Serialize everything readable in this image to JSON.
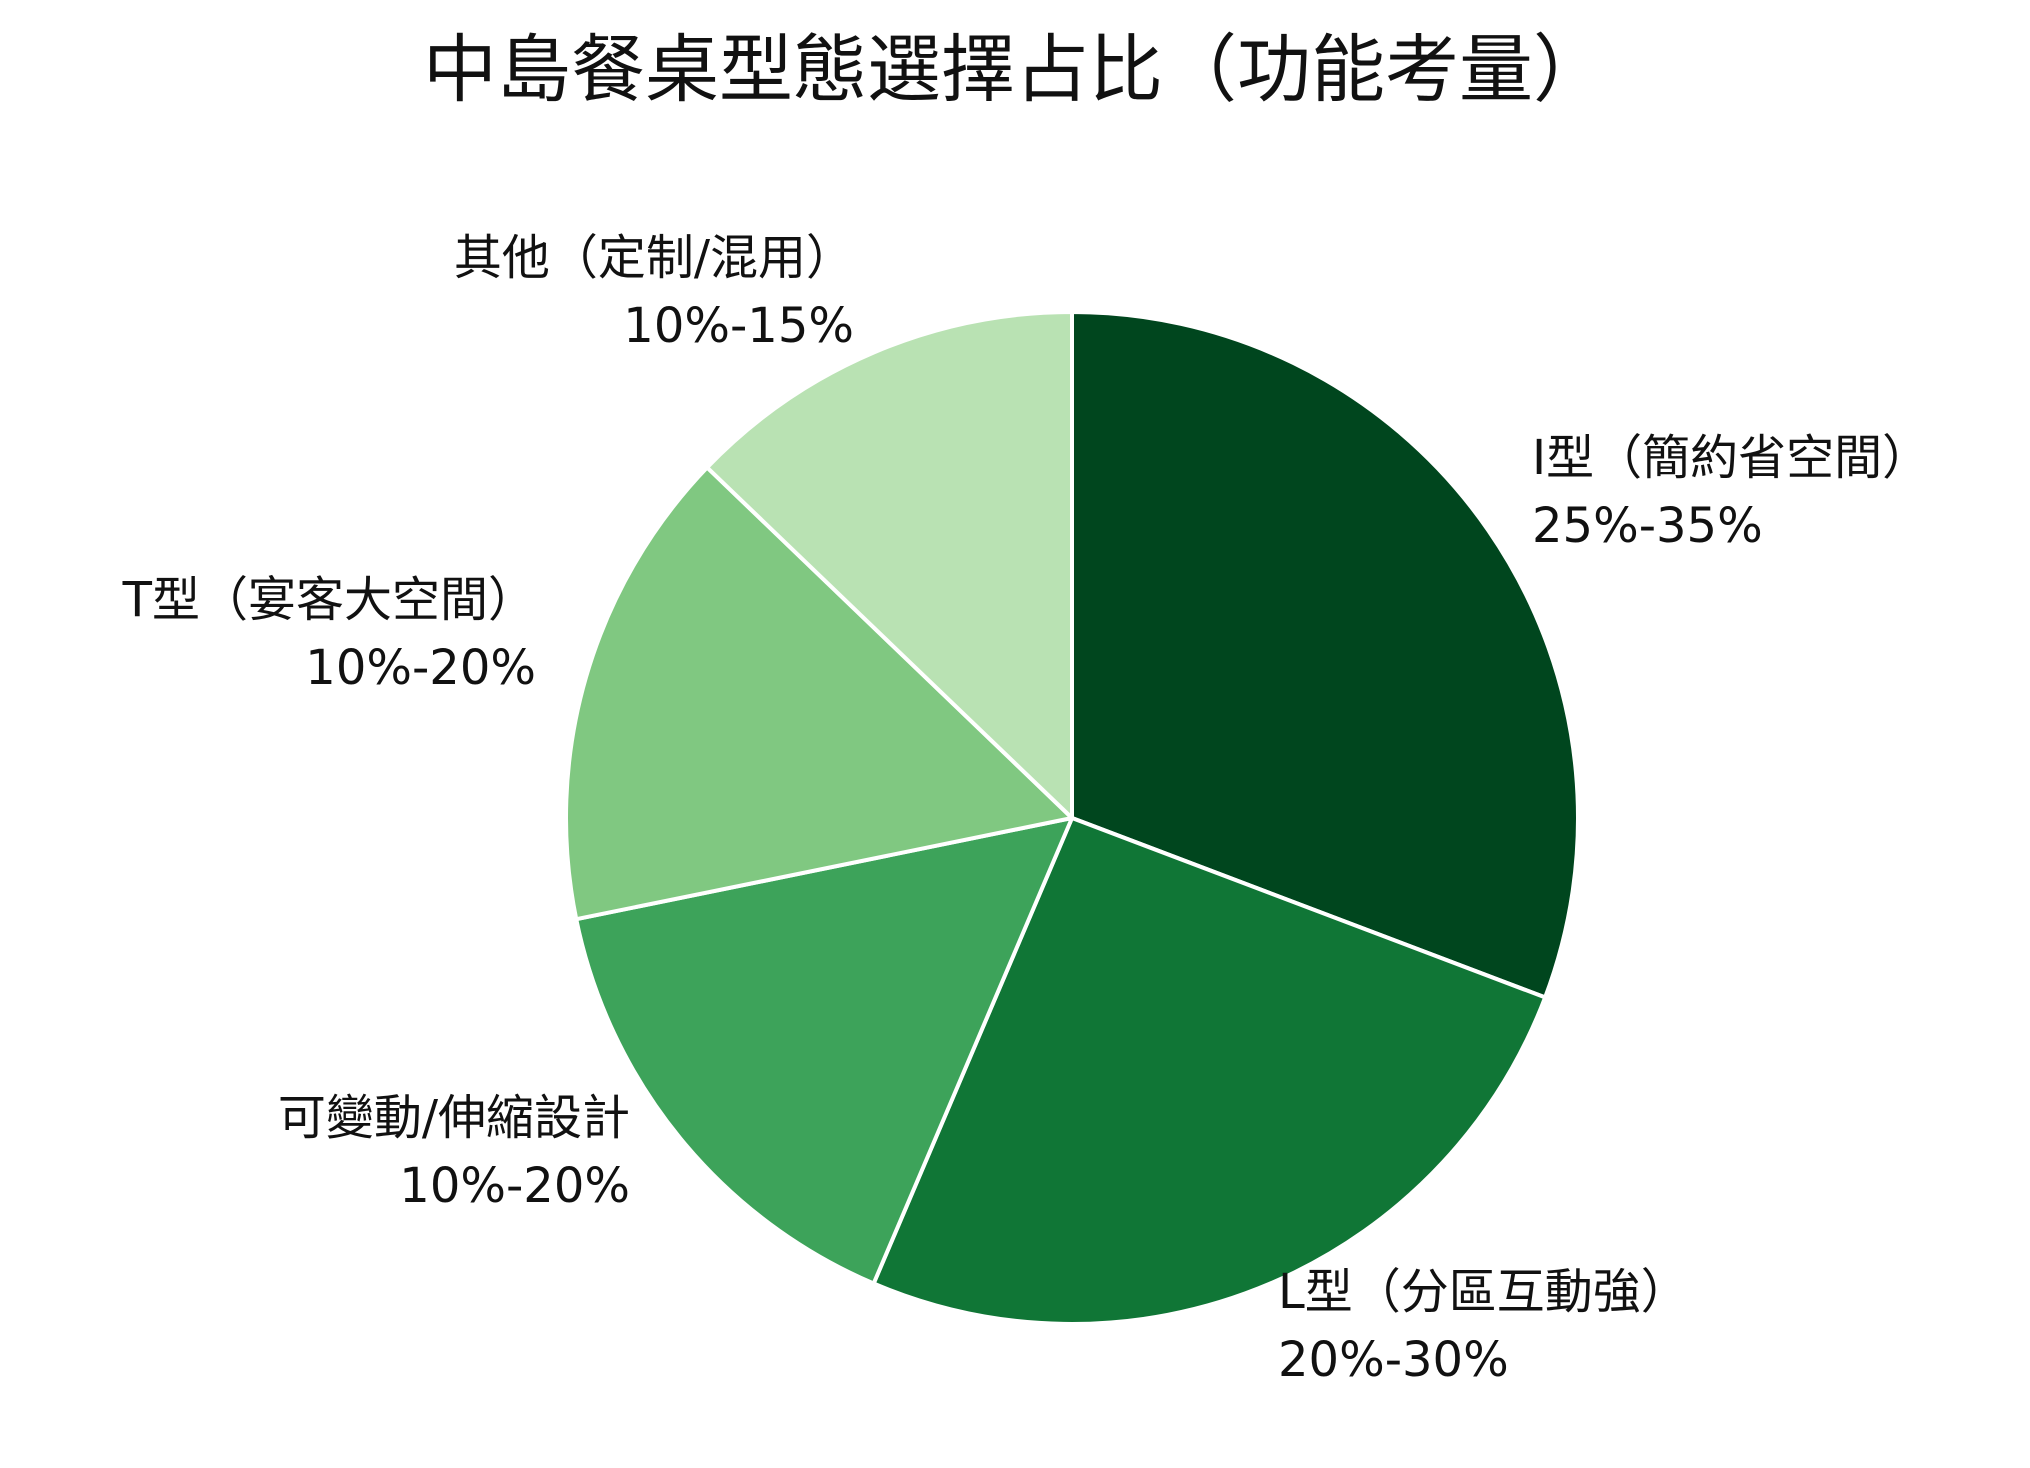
{
  "chart_data": {
    "type": "pie",
    "title": "中島餐桌型態選擇占比（功能考量）",
    "start_angle": "12 o'clock",
    "direction": "clockwise",
    "slices": [
      {
        "name": "I型（簡約省空間）",
        "range_label": "25%-35%",
        "value": 30,
        "color": "#00461e"
      },
      {
        "name": "L型（分區互動強）",
        "range_label": "20%-30%",
        "value": 25,
        "color": "#107636"
      },
      {
        "name": "可變動/伸縮設計",
        "range_label": "10%-20%",
        "value": 15,
        "color": "#3da35a"
      },
      {
        "name": "T型（宴客大空間）",
        "range_label": "10%-20%",
        "value": 15,
        "color": "#80c881"
      },
      {
        "name": "其他（定制/混用）",
        "range_label": "10%-15%",
        "value": 12.5,
        "color": "#b9e2b3"
      }
    ]
  }
}
